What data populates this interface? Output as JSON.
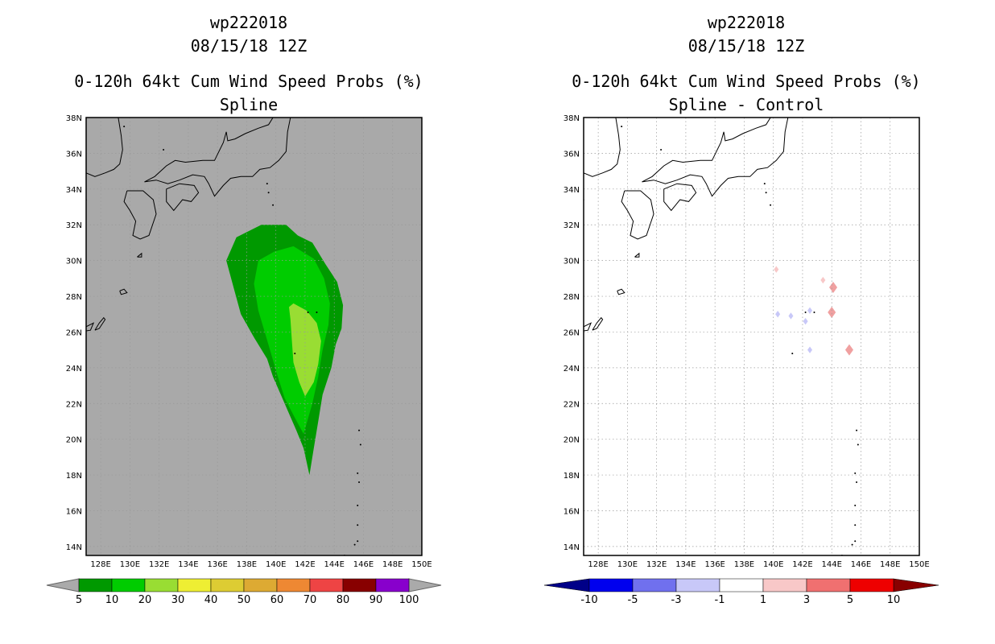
{
  "panels": [
    {
      "id": "left",
      "storm_id": "wp222018",
      "datetime": "08/15/18 12Z",
      "product": "0-120h 64kt Cum Wind Speed Probs (%)",
      "subtitle": "Spline",
      "background": "#a9a9a9",
      "gridlines": true,
      "colorbar": {
        "labels": [
          "5",
          "10",
          "20",
          "30",
          "40",
          "50",
          "60",
          "70",
          "80",
          "90",
          "100"
        ],
        "colors": [
          "#009900",
          "#00cc00",
          "#99dd33",
          "#eeee33",
          "#ddcc33",
          "#ddaa33",
          "#ee8833",
          "#ee4444",
          "#880000",
          "#8800cc"
        ],
        "end_color": "#aaaaaa"
      }
    },
    {
      "id": "right",
      "storm_id": "wp222018",
      "datetime": "08/15/18 12Z",
      "product": "0-120h 64kt Cum Wind Speed Probs (%)",
      "subtitle": "Spline - Control",
      "background": "#ffffff",
      "gridlines": true,
      "colorbar": {
        "labels": [
          "-10",
          "-5",
          "-3",
          "-1",
          "1",
          "3",
          "5",
          "10"
        ],
        "colors": [
          "#0000ee",
          "#7070ee",
          "#c8c8f8",
          "#ffffff",
          "#f8c8c8",
          "#f07070",
          "#ee0000"
        ],
        "end_left": "#000088",
        "end_right": "#880000"
      }
    }
  ],
  "chart_data": {
    "type": "heatmap",
    "title": "0-120h 64kt Cum Wind Speed Probs (%)",
    "xlim": [
      127,
      150
    ],
    "ylim": [
      13.5,
      38
    ],
    "x_ticks": [
      "128E",
      "130E",
      "132E",
      "134E",
      "136E",
      "138E",
      "140E",
      "142E",
      "144E",
      "146E",
      "148E",
      "150E"
    ],
    "y_ticks": [
      "14N",
      "16N",
      "18N",
      "20N",
      "22N",
      "24N",
      "26N",
      "28N",
      "30N",
      "32N",
      "34N",
      "36N",
      "38N"
    ],
    "spline_contours": [
      {
        "level": "5-10",
        "color": "#009900",
        "lonlat": [
          [
            139,
            32
          ],
          [
            140.7,
            32
          ],
          [
            141.5,
            31.4
          ],
          [
            142.5,
            31
          ],
          [
            143.4,
            29.8
          ],
          [
            144.2,
            28.8
          ],
          [
            144.6,
            27.5
          ],
          [
            144.5,
            26.2
          ],
          [
            144.1,
            25.3
          ],
          [
            143.8,
            24
          ],
          [
            143.2,
            22.5
          ],
          [
            142.9,
            21
          ],
          [
            142.6,
            19.5
          ],
          [
            142.3,
            18
          ],
          [
            141.9,
            19.5
          ],
          [
            141.4,
            20.5
          ],
          [
            140.6,
            22
          ],
          [
            139.8,
            23.5
          ],
          [
            139.4,
            24.5
          ],
          [
            138.5,
            25.7
          ],
          [
            137.6,
            27
          ],
          [
            137.1,
            28.5
          ],
          [
            136.6,
            30
          ],
          [
            137.3,
            31.3
          ]
        ]
      },
      {
        "level": "10-20",
        "color": "#00cc00",
        "lonlat": [
          [
            139.9,
            30.5
          ],
          [
            141.2,
            30.8
          ],
          [
            142.6,
            30.1
          ],
          [
            143.3,
            29
          ],
          [
            143.7,
            27.6
          ],
          [
            143.6,
            26.4
          ],
          [
            143.2,
            25
          ],
          [
            142.9,
            23.5
          ],
          [
            142.5,
            22
          ],
          [
            141.9,
            20.3
          ],
          [
            141.3,
            21.2
          ],
          [
            140.6,
            22.3
          ],
          [
            140.1,
            23.6
          ],
          [
            139.6,
            25
          ],
          [
            139.2,
            26.1
          ],
          [
            138.8,
            27.2
          ],
          [
            138.5,
            28.7
          ],
          [
            138.8,
            30
          ]
        ]
      },
      {
        "level": "20-30",
        "color": "#99dd33",
        "lonlat": [
          [
            141.2,
            27.6
          ],
          [
            142.1,
            27.2
          ],
          [
            142.8,
            26.5
          ],
          [
            143.1,
            25.5
          ],
          [
            142.9,
            24.2
          ],
          [
            142.6,
            23.2
          ],
          [
            142,
            22.4
          ],
          [
            141.6,
            23.2
          ],
          [
            141.2,
            24.3
          ],
          [
            141.1,
            25.5
          ],
          [
            141,
            26.7
          ],
          [
            140.9,
            27.4
          ]
        ]
      }
    ],
    "spline_minus_control": [
      {
        "lon": 140.2,
        "lat": 29.5,
        "value_range": "1 to 3"
      },
      {
        "lon": 144.1,
        "lat": 28.5,
        "value_range": "3 to 5"
      },
      {
        "lon": 143.4,
        "lat": 28.9,
        "value_range": "1 to 3"
      },
      {
        "lon": 144.0,
        "lat": 27.1,
        "value_range": "3 to 5"
      },
      {
        "lon": 145.2,
        "lat": 25.0,
        "value_range": "3 to 5"
      },
      {
        "lon": 142.5,
        "lat": 27.2,
        "value_range": "-3 to -1"
      },
      {
        "lon": 142.2,
        "lat": 26.6,
        "value_range": "-3 to -1"
      },
      {
        "lon": 140.3,
        "lat": 27.0,
        "value_range": "-3 to -1"
      },
      {
        "lon": 141.2,
        "lat": 26.9,
        "value_range": "-3 to -1"
      },
      {
        "lon": 142.5,
        "lat": 25.0,
        "value_range": "-3 to -1"
      }
    ]
  }
}
